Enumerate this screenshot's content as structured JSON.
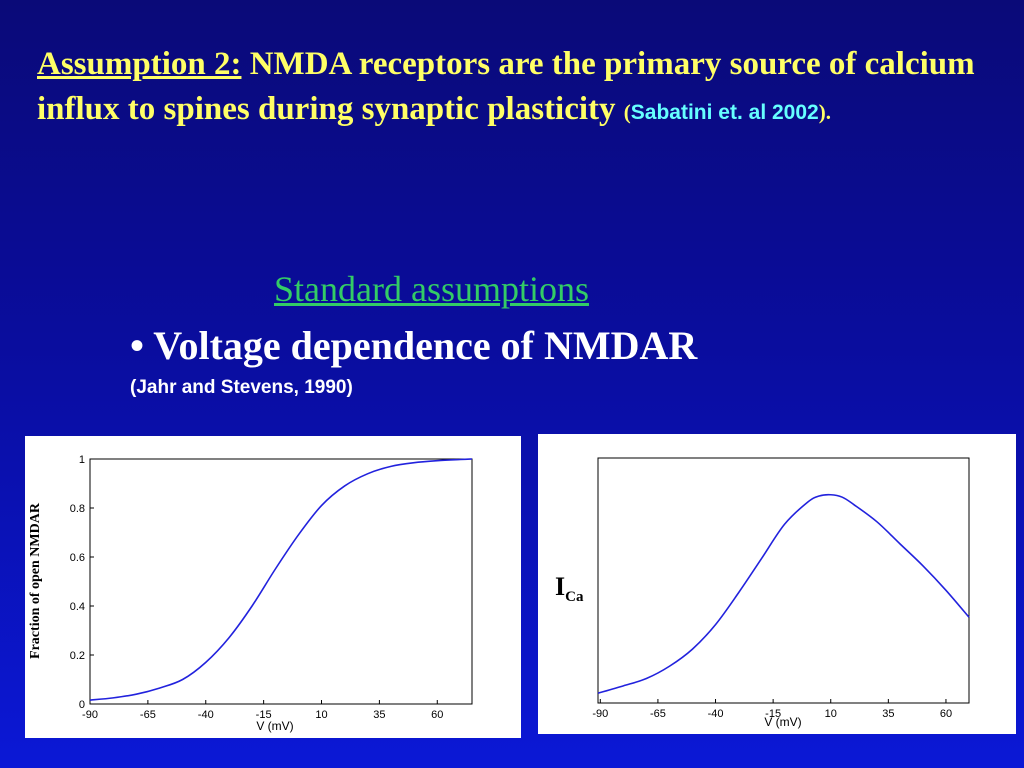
{
  "slide": {
    "assumption_label": "Assumption 2:",
    "assumption_text": " NMDA receptors are the primary source of calcium influx to spines during synaptic plasticity ",
    "citation_open": "(",
    "citation": "Sabatini et. al 2002",
    "citation_close": ").",
    "section_title": "Standard assumptions",
    "bullet": "• Voltage dependence of NMDAR",
    "reference": "(Jahr and Stevens, 1990)"
  },
  "chart_data": [
    {
      "type": "line",
      "xlabel": "V (mV)",
      "ylabel": "Fraction of open NMDAR",
      "xticks": [
        "-90",
        "-65",
        "-40",
        "-15",
        "10",
        "35",
        "60"
      ],
      "yticks": [
        "0",
        "0.2",
        "0.4",
        "0.6",
        "0.8",
        "1"
      ],
      "xlim": [
        -90,
        75
      ],
      "ylim": [
        0,
        1
      ],
      "series": [
        {
          "color": "#2222dd",
          "x": [
            -90,
            -80,
            -70,
            -60,
            -50,
            -40,
            -30,
            -20,
            -10,
            0,
            10,
            20,
            30,
            40,
            50,
            60,
            70,
            75
          ],
          "y": [
            0.016,
            0.025,
            0.04,
            0.065,
            0.1,
            0.17,
            0.27,
            0.4,
            0.55,
            0.69,
            0.81,
            0.89,
            0.94,
            0.97,
            0.985,
            0.993,
            0.998,
            1.0
          ]
        }
      ]
    },
    {
      "type": "line",
      "xlabel": "V (mV)",
      "ylabel": "I",
      "ylabel_sub": "Ca",
      "xticks": [
        "-90",
        "-65",
        "-40",
        "-15",
        "10",
        "35",
        "60"
      ],
      "xlim": [
        -91,
        70
      ],
      "ylim": [
        0,
        1
      ],
      "series": [
        {
          "color": "#2222dd",
          "x": [
            -91,
            -80,
            -70,
            -60,
            -50,
            -40,
            -30,
            -20,
            -10,
            0,
            5,
            10,
            15,
            20,
            30,
            40,
            50,
            60,
            70
          ],
          "y": [
            0.04,
            0.07,
            0.1,
            0.15,
            0.22,
            0.32,
            0.45,
            0.59,
            0.73,
            0.82,
            0.845,
            0.85,
            0.84,
            0.81,
            0.74,
            0.65,
            0.56,
            0.46,
            0.35
          ]
        }
      ]
    }
  ]
}
